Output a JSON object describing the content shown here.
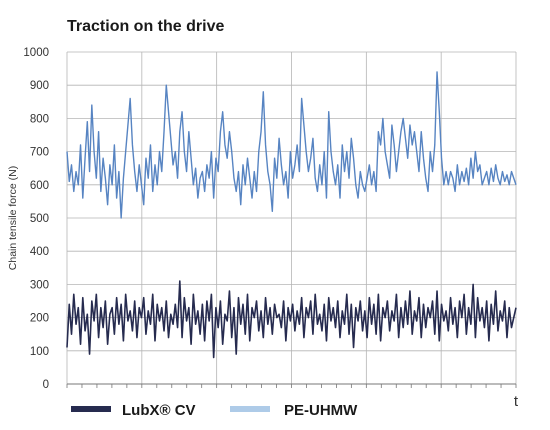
{
  "chart_data": {
    "type": "line",
    "title": "Traction on the drive",
    "ylabel": "Chain tensile force (N)",
    "xlabel": "t",
    "ylim": [
      0,
      1000
    ],
    "yticks": [
      0,
      100,
      200,
      300,
      400,
      500,
      600,
      700,
      800,
      900,
      1000
    ],
    "grid": true,
    "legend_position": "bottom-left",
    "series": [
      {
        "name": "LubX® CV",
        "color": "#262b4f",
        "x": [
          0,
          1,
          2,
          3,
          4,
          5,
          6,
          7,
          8,
          9,
          10,
          11,
          12,
          13,
          14,
          15,
          16,
          17,
          18,
          19,
          20,
          21,
          22,
          23,
          24,
          25,
          26,
          27,
          28,
          29,
          30,
          31,
          32,
          33,
          34,
          35,
          36,
          37,
          38,
          39,
          40,
          41,
          42,
          43,
          44,
          45,
          46,
          47,
          48,
          49,
          50,
          51,
          52,
          53,
          54,
          55,
          56,
          57,
          58,
          59,
          60,
          61,
          62,
          63,
          64,
          65,
          66,
          67,
          68,
          69,
          70,
          71,
          72,
          73,
          74,
          75,
          76,
          77,
          78,
          79,
          80,
          81,
          82,
          83,
          84,
          85,
          86,
          87,
          88,
          89,
          90,
          91,
          92,
          93,
          94,
          95,
          96,
          97,
          98,
          99,
          100,
          101,
          102,
          103,
          104,
          105,
          106,
          107,
          108,
          109,
          110,
          111,
          112,
          113,
          114,
          115,
          116,
          117,
          118,
          119,
          120,
          121,
          122,
          123,
          124,
          125,
          126,
          127,
          128,
          129,
          130,
          131,
          132,
          133,
          134,
          135,
          136,
          137,
          138,
          139,
          140,
          141,
          142,
          143,
          144,
          145,
          146,
          147,
          148,
          149,
          150,
          151,
          152,
          153,
          154,
          155,
          156,
          157,
          158,
          159,
          160,
          161,
          162,
          163,
          164,
          165,
          166,
          167,
          168,
          169,
          170,
          171,
          172,
          173,
          174,
          175,
          176,
          177,
          178,
          179,
          180,
          181,
          182,
          183,
          184,
          185,
          186,
          187,
          188,
          189,
          190,
          191,
          192,
          193,
          194,
          195,
          196,
          197,
          198,
          199
        ],
        "values": [
          110,
          240,
          150,
          270,
          180,
          230,
          120,
          260,
          160,
          210,
          90,
          250,
          190,
          270,
          140,
          230,
          170,
          250,
          120,
          210,
          230,
          150,
          260,
          180,
          240,
          130,
          270,
          190,
          220,
          160,
          250,
          140,
          230,
          200,
          260,
          150,
          220,
          180,
          270,
          130,
          240,
          190,
          230,
          160,
          250,
          140,
          210,
          180,
          240,
          170,
          310,
          140,
          260,
          190,
          230,
          120,
          270,
          180,
          220,
          150,
          240,
          130,
          250,
          190,
          270,
          80,
          230,
          170,
          250,
          120,
          210,
          190,
          280,
          140,
          230,
          90,
          260,
          180,
          240,
          150,
          270,
          130,
          230,
          200,
          250,
          160,
          220,
          140,
          260,
          180,
          230,
          150,
          240,
          200,
          210,
          170,
          250,
          130,
          230,
          190,
          240,
          160,
          220,
          180,
          260,
          140,
          230,
          200,
          250,
          150,
          270,
          180,
          210,
          160,
          240,
          130,
          260,
          190,
          230,
          170,
          250,
          140,
          220,
          180,
          270,
          150,
          240,
          110,
          230,
          190,
          250,
          160,
          220,
          140,
          260,
          180,
          240,
          150,
          270,
          130,
          230,
          200,
          250,
          160,
          220,
          190,
          270,
          140,
          230,
          170,
          250,
          180,
          280,
          150,
          220,
          190,
          260,
          140,
          240,
          170,
          230,
          200,
          250,
          150,
          280,
          130,
          240,
          190,
          220,
          160,
          260,
          180,
          230,
          140,
          250,
          200,
          270,
          150,
          230,
          180,
          300,
          140,
          260,
          190,
          230,
          170,
          250,
          130,
          240,
          180,
          280,
          160,
          220,
          190,
          250,
          140,
          230,
          170,
          200,
          230
        ]
      },
      {
        "name": "PE-UHMW",
        "color": "#5784c2",
        "x": [
          0,
          1,
          2,
          3,
          4,
          5,
          6,
          7,
          8,
          9,
          10,
          11,
          12,
          13,
          14,
          15,
          16,
          17,
          18,
          19,
          20,
          21,
          22,
          23,
          24,
          25,
          26,
          27,
          28,
          29,
          30,
          31,
          32,
          33,
          34,
          35,
          36,
          37,
          38,
          39,
          40,
          41,
          42,
          43,
          44,
          45,
          46,
          47,
          48,
          49,
          50,
          51,
          52,
          53,
          54,
          55,
          56,
          57,
          58,
          59,
          60,
          61,
          62,
          63,
          64,
          65,
          66,
          67,
          68,
          69,
          70,
          71,
          72,
          73,
          74,
          75,
          76,
          77,
          78,
          79,
          80,
          81,
          82,
          83,
          84,
          85,
          86,
          87,
          88,
          89,
          90,
          91,
          92,
          93,
          94,
          95,
          96,
          97,
          98,
          99,
          100,
          101,
          102,
          103,
          104,
          105,
          106,
          107,
          108,
          109,
          110,
          111,
          112,
          113,
          114,
          115,
          116,
          117,
          118,
          119,
          120,
          121,
          122,
          123,
          124,
          125,
          126,
          127,
          128,
          129,
          130,
          131,
          132,
          133,
          134,
          135,
          136,
          137,
          138,
          139,
          140,
          141,
          142,
          143,
          144,
          145,
          146,
          147,
          148,
          149,
          150,
          151,
          152,
          153,
          154,
          155,
          156,
          157,
          158,
          159,
          160,
          161,
          162,
          163,
          164,
          165,
          166,
          167,
          168,
          169,
          170,
          171,
          172,
          173,
          174,
          175,
          176,
          177,
          178,
          179,
          180,
          181,
          182,
          183,
          184,
          185,
          186,
          187,
          188,
          189,
          190,
          191,
          192,
          193,
          194,
          195,
          196,
          197,
          198,
          199
        ],
        "values": [
          700,
          610,
          660,
          580,
          640,
          600,
          720,
          560,
          680,
          790,
          640,
          840,
          700,
          620,
          760,
          580,
          680,
          620,
          540,
          660,
          600,
          720,
          560,
          640,
          500,
          620,
          700,
          780,
          860,
          720,
          640,
          580,
          660,
          600,
          540,
          680,
          620,
          720,
          580,
          660,
          600,
          700,
          640,
          760,
          900,
          820,
          740,
          660,
          700,
          620,
          760,
          820,
          700,
          640,
          760,
          680,
          600,
          650,
          560,
          620,
          640,
          580,
          660,
          620,
          700,
          560,
          680,
          640,
          760,
          820,
          720,
          680,
          760,
          700,
          620,
          580,
          640,
          540,
          660,
          600,
          680,
          620,
          560,
          640,
          580,
          700,
          760,
          880,
          720,
          640,
          600,
          520,
          680,
          620,
          740,
          660,
          600,
          640,
          560,
          700,
          620,
          660,
          720,
          640,
          860,
          780,
          700,
          640,
          680,
          740,
          620,
          580,
          660,
          600,
          700,
          560,
          820,
          700,
          640,
          600,
          660,
          560,
          720,
          640,
          700,
          620,
          740,
          680,
          600,
          560,
          640,
          600,
          580,
          620,
          660,
          600,
          640,
          580,
          760,
          720,
          800,
          700,
          660,
          620,
          780,
          720,
          640,
          700,
          760,
          800,
          740,
          680,
          780,
          720,
          760,
          700,
          640,
          760,
          680,
          620,
          580,
          700,
          640,
          720,
          940,
          820,
          680,
          600,
          640,
          600,
          640,
          620,
          580,
          660,
          600,
          640,
          610,
          650,
          600,
          680,
          620,
          700,
          640,
          660,
          600,
          620,
          640,
          600,
          650,
          610,
          660,
          620,
          600,
          640,
          610,
          630,
          600,
          640,
          620,
          600
        ]
      }
    ]
  }
}
